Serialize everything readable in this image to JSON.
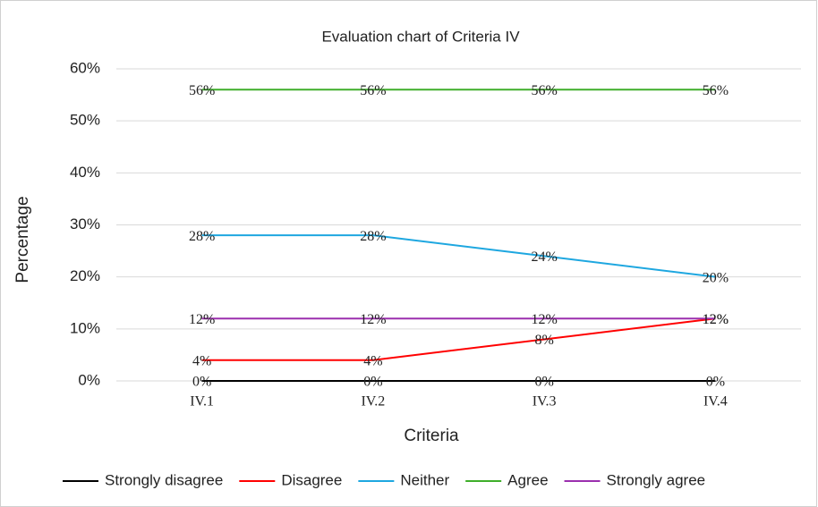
{
  "chart_data": {
    "type": "line",
    "title": "Evaluation chart of  Criteria IV",
    "x_label": "Criteria",
    "y_label": "Percentage",
    "categories": [
      "IV.1",
      "IV.2",
      "IV.3",
      "IV.4"
    ],
    "series": [
      {
        "name": "Strongly disagree",
        "color": "#000000",
        "values": [
          0,
          0,
          0,
          0
        ],
        "value_labels": [
          "0%",
          "0%",
          "0%",
          "0%"
        ]
      },
      {
        "name": "Disagree",
        "color": "#ff0000",
        "values": [
          4,
          4,
          8,
          12
        ],
        "value_labels": [
          "4%",
          "4%",
          "8%",
          "12%"
        ]
      },
      {
        "name": "Neither",
        "color": "#1ea7e0",
        "values": [
          28,
          28,
          24,
          20
        ],
        "value_labels": [
          "28%",
          "28%",
          "24%",
          "20%"
        ]
      },
      {
        "name": "Agree",
        "color": "#3fae2a",
        "values": [
          56,
          56,
          56,
          56
        ],
        "value_labels": [
          "56%",
          "56%",
          "56%",
          "56%"
        ]
      },
      {
        "name": "Strongly agree",
        "color": "#9b2fae",
        "values": [
          12,
          12,
          12,
          12
        ],
        "value_labels": [
          "12%",
          "12%",
          "12%",
          "12%"
        ]
      }
    ],
    "ylim": [
      0,
      60
    ],
    "yticks": [
      {
        "value": 0,
        "label": "0%"
      },
      {
        "value": 10,
        "label": "10%"
      },
      {
        "value": 20,
        "label": "20%"
      },
      {
        "value": 30,
        "label": "30%"
      },
      {
        "value": 40,
        "label": "40%"
      },
      {
        "value": 50,
        "label": "50%"
      },
      {
        "value": 60,
        "label": "60%"
      }
    ],
    "grid": true,
    "legend": "bottom"
  }
}
